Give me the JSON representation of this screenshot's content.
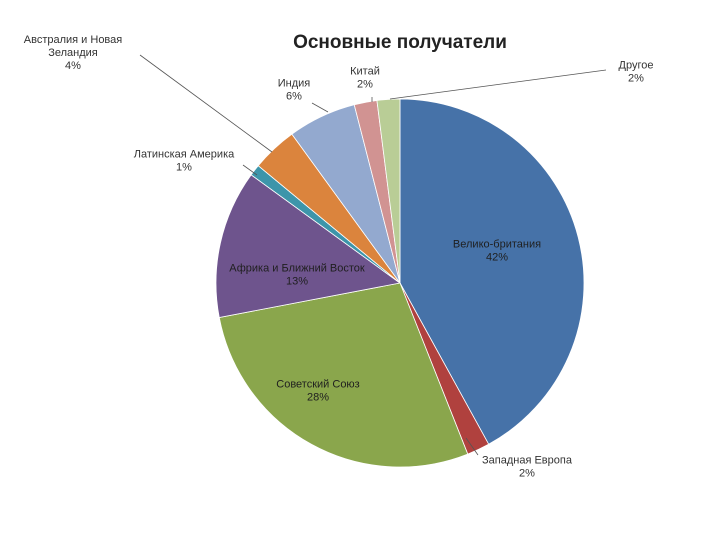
{
  "chart_data": {
    "type": "pie",
    "title": "Основные получатели",
    "slices": [
      {
        "name": "Велико-британия",
        "pct_label": "42%",
        "value": 42,
        "color": "#4672a8"
      },
      {
        "name": "Западная Европа",
        "pct_label": "2%",
        "value": 2,
        "color": "#b0413e"
      },
      {
        "name": "Советский Союз",
        "pct_label": "28%",
        "value": 28,
        "color": "#8aa64c"
      },
      {
        "name": "Африка и Ближний Восток",
        "pct_label": "13%",
        "value": 13,
        "color": "#6e548d"
      },
      {
        "name": "Латинская Америка",
        "pct_label": "1%",
        "value": 1,
        "color": "#3d95aa"
      },
      {
        "name": "Австралия и Новая Зеландия",
        "name_lines": [
          "Австралия и Новая",
          "Зеландия"
        ],
        "pct_label": "4%",
        "value": 4,
        "color": "#db843d"
      },
      {
        "name": "Индия",
        "pct_label": "6%",
        "value": 6,
        "color": "#93a9cf"
      },
      {
        "name": "Китай",
        "pct_label": "2%",
        "value": 2,
        "color": "#d19392"
      },
      {
        "name": "Другое",
        "pct_label": "2%",
        "value": 2,
        "color": "#b9cd96"
      }
    ],
    "start_angle_deg": 0,
    "direction": "clockwise",
    "legend": "none"
  }
}
